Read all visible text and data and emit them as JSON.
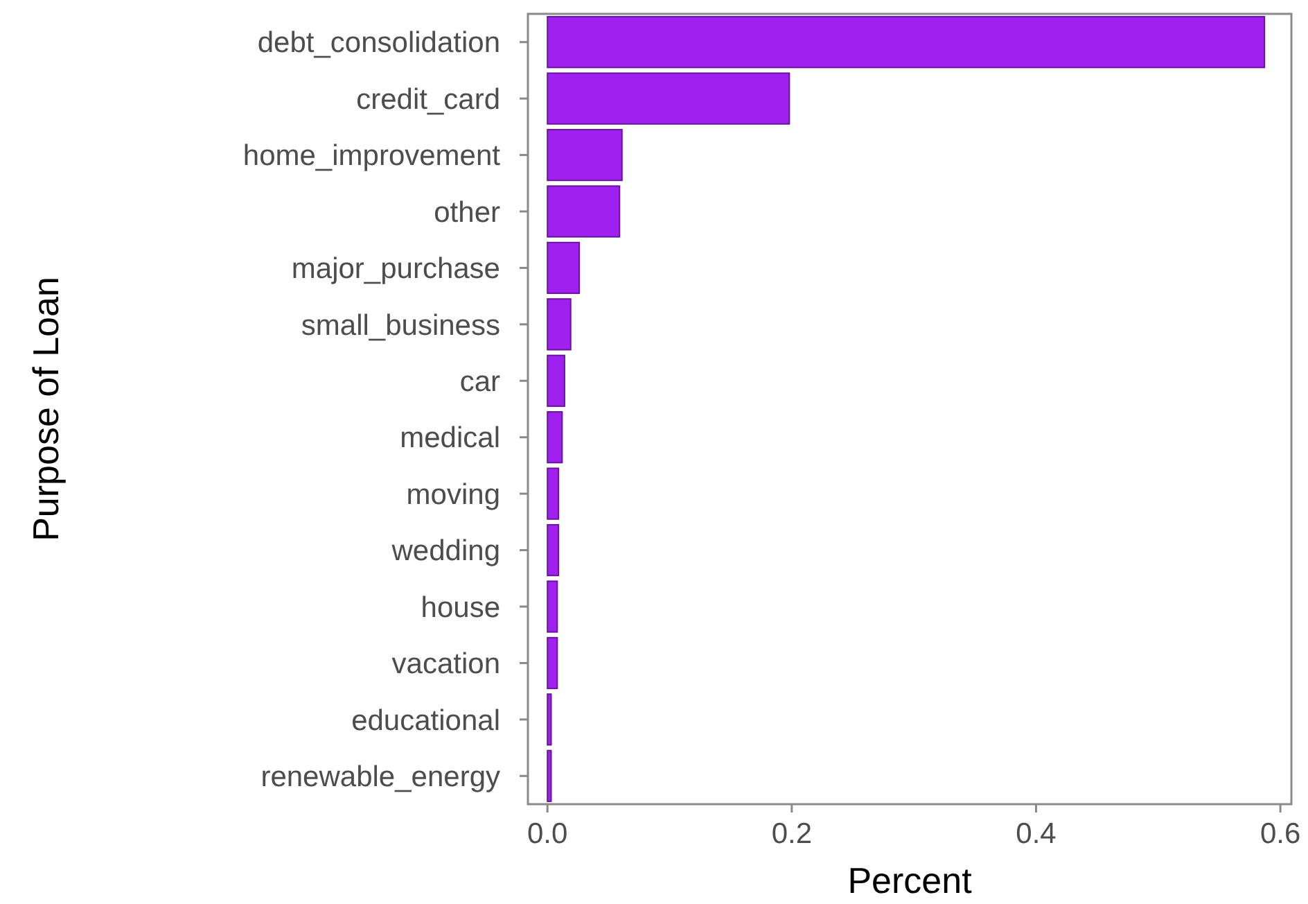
{
  "chart_data": {
    "type": "bar",
    "orientation": "horizontal",
    "xlabel": "Percent",
    "ylabel": "Purpose of Loan",
    "categories": [
      "debt_consolidation",
      "credit_card",
      "home_improvement",
      "other",
      "major_purchase",
      "small_business",
      "car",
      "medical",
      "moving",
      "wedding",
      "house",
      "vacation",
      "educational",
      "renewable_energy"
    ],
    "values": [
      0.587,
      0.198,
      0.061,
      0.059,
      0.026,
      0.019,
      0.014,
      0.012,
      0.009,
      0.009,
      0.008,
      0.008,
      0.003,
      0.003
    ],
    "color": "#a020f0",
    "xlim": [
      -0.016,
      0.609
    ],
    "xticks": [
      {
        "value": 0,
        "label": "0.0"
      },
      {
        "value": 0.2,
        "label": "0.2"
      },
      {
        "value": 0.4,
        "label": "0.4"
      },
      {
        "value": 0.6,
        "label": "0.6"
      }
    ],
    "grid": false
  }
}
